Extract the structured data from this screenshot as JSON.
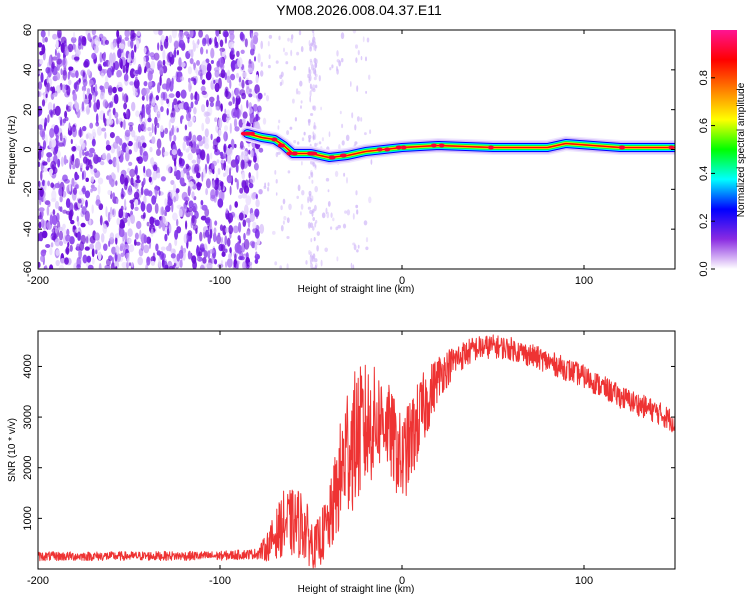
{
  "title": "YM08.2026.008.04.37.E11",
  "chart_data": [
    {
      "type": "heatmap",
      "name": "spectrogram",
      "xlabel": "Height of straight line (km)",
      "ylabel": "Frequency (Hz)",
      "xlim": [
        -200,
        150
      ],
      "ylim": [
        -60,
        60
      ],
      "xticks": [
        "-200",
        "-100",
        "0",
        "100"
      ],
      "yticks": [
        "60",
        "40",
        "20",
        "0",
        "-20",
        "-40",
        "-60"
      ],
      "noise_region_x": [
        -200,
        -77
      ],
      "signal_ridge": [
        {
          "x": -85,
          "y": 8
        },
        {
          "x": -77,
          "y": 6
        },
        {
          "x": -70,
          "y": 5
        },
        {
          "x": -65,
          "y": 2
        },
        {
          "x": -60,
          "y": -2
        },
        {
          "x": -50,
          "y": -2
        },
        {
          "x": -40,
          "y": -4
        },
        {
          "x": -30,
          "y": -3
        },
        {
          "x": -20,
          "y": -1
        },
        {
          "x": -10,
          "y": 0
        },
        {
          "x": 0,
          "y": 1
        },
        {
          "x": 20,
          "y": 2
        },
        {
          "x": 50,
          "y": 1
        },
        {
          "x": 80,
          "y": 1
        },
        {
          "x": 90,
          "y": 3
        },
        {
          "x": 120,
          "y": 1
        },
        {
          "x": 150,
          "y": 1
        }
      ],
      "colorbar": {
        "label": "Normalized spectral amplitude",
        "ticks": [
          "0.0",
          "0.2",
          "0.4",
          "0.6",
          "0.8"
        ],
        "range": [
          0,
          1
        ],
        "colors": [
          "#ffffff",
          "#8a2be2",
          "#0000ff",
          "#00ffff",
          "#00ff00",
          "#ffff00",
          "#ff7f00",
          "#ff0000",
          "#ff1493"
        ]
      }
    },
    {
      "type": "line",
      "name": "snr",
      "xlabel": "Height of straight line (km)",
      "ylabel": "SNR (10 * v/v)",
      "xlim": [
        -200,
        150
      ],
      "ylim": [
        0,
        4700
      ],
      "xticks": [
        "-200",
        "-100",
        "0",
        "100"
      ],
      "yticks": [
        "1000",
        "2000",
        "3000",
        "4000"
      ],
      "color": "#ee3333",
      "envelope": {
        "x": [
          -200,
          -100,
          -80,
          -75,
          -65,
          -55,
          -48,
          -40,
          -30,
          -20,
          -10,
          0,
          10,
          20,
          30,
          40,
          50,
          60,
          80,
          100,
          120,
          140,
          150
        ],
        "level": [
          250,
          260,
          300,
          400,
          900,
          900,
          400,
          900,
          2400,
          2800,
          3000,
          2100,
          3000,
          3800,
          4150,
          4350,
          4400,
          4350,
          4100,
          3800,
          3400,
          3100,
          2900
        ],
        "noise": [
          90,
          90,
          100,
          250,
          650,
          700,
          450,
          650,
          1400,
          1300,
          900,
          900,
          800,
          450,
          300,
          250,
          230,
          230,
          230,
          230,
          230,
          230,
          230
        ]
      }
    }
  ]
}
